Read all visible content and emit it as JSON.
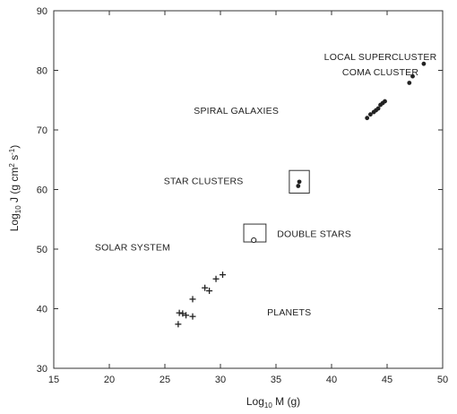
{
  "chart_data": {
    "type": "scatter",
    "title": "",
    "xlabel": "Log10 M (g)",
    "ylabel": "Log10 J (g cm2 s-1)",
    "xlim": [
      15,
      50
    ],
    "ylim": [
      30,
      90
    ],
    "xticks": [
      15,
      20,
      25,
      30,
      35,
      40,
      45,
      50
    ],
    "yticks": [
      30,
      40,
      50,
      60,
      70,
      80,
      90
    ],
    "grid": false,
    "series": [
      {
        "marker": "plus",
        "points": [
          {
            "x": 26.2,
            "y": 37.4
          },
          {
            "x": 26.3,
            "y": 39.3
          },
          {
            "x": 26.6,
            "y": 39.2
          },
          {
            "x": 26.9,
            "y": 38.9
          },
          {
            "x": 27.5,
            "y": 41.6
          },
          {
            "x": 27.5,
            "y": 38.7
          },
          {
            "x": 28.6,
            "y": 43.5
          },
          {
            "x": 29.0,
            "y": 43.0
          },
          {
            "x": 29.6,
            "y": 45.0
          },
          {
            "x": 30.2,
            "y": 45.7
          }
        ]
      },
      {
        "marker": "dot",
        "points": [
          {
            "x": 43.2,
            "y": 72.0
          },
          {
            "x": 43.5,
            "y": 72.6
          },
          {
            "x": 43.8,
            "y": 73.0
          },
          {
            "x": 44.0,
            "y": 73.3
          },
          {
            "x": 44.2,
            "y": 73.6
          },
          {
            "x": 44.4,
            "y": 74.2
          },
          {
            "x": 44.6,
            "y": 74.5
          },
          {
            "x": 44.8,
            "y": 74.8
          },
          {
            "x": 47.0,
            "y": 77.9
          },
          {
            "x": 47.3,
            "y": 79.0
          },
          {
            "x": 48.3,
            "y": 81.1
          },
          {
            "x": 37.0,
            "y": 60.6
          },
          {
            "x": 37.1,
            "y": 61.3
          }
        ]
      },
      {
        "marker": "open-circle",
        "points": [
          {
            "x": 33.0,
            "y": 51.5
          }
        ]
      }
    ],
    "regions": [
      {
        "x0": 36.2,
        "x1": 38.0,
        "y0": 59.4,
        "y1": 63.2
      },
      {
        "x0": 32.1,
        "x1": 34.1,
        "y0": 51.2,
        "y1": 54.2
      }
    ],
    "annotations": [
      {
        "text": "LOCAL SUPERCLUSTER",
        "x": 44.4,
        "y": 81.7,
        "anchor": "middle"
      },
      {
        "text": "COMA CLUSTER",
        "x": 44.4,
        "y": 79.2,
        "anchor": "middle"
      },
      {
        "text": "SPIRAL GALAXIES",
        "x": 27.6,
        "y": 72.7,
        "anchor": "start"
      },
      {
        "text": "STAR CLUSTERS",
        "x": 24.9,
        "y": 60.9,
        "anchor": "start"
      },
      {
        "text": "DOUBLE STARS",
        "x": 35.1,
        "y": 52.0,
        "anchor": "start"
      },
      {
        "text": "SOLAR SYSTEM",
        "x": 18.7,
        "y": 49.8,
        "anchor": "start"
      },
      {
        "text": "PLANETS",
        "x": 34.2,
        "y": 38.9,
        "anchor": "start"
      }
    ]
  }
}
